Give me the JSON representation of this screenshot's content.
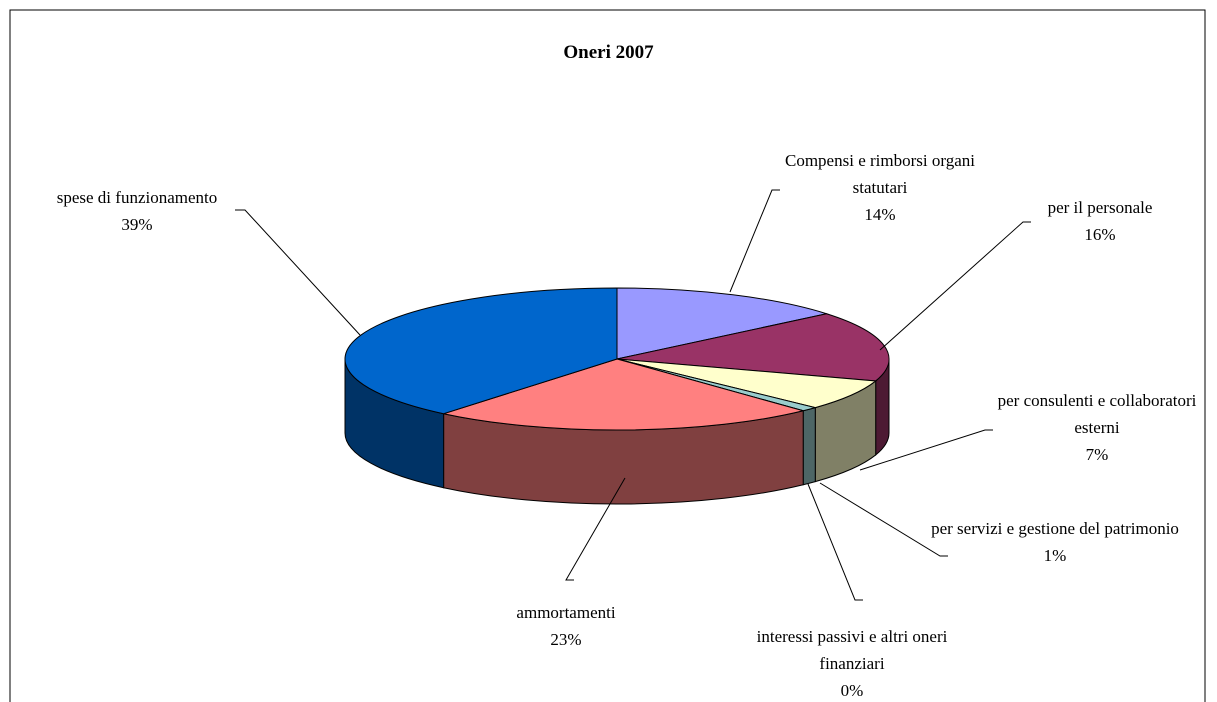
{
  "chart_data": {
    "type": "pie3d",
    "title": "Oneri 2007",
    "categories": [
      "Compensi e rimborsi organi statutari",
      "per il personale",
      "per consulenti e collaboratori esterni",
      "per servizi e gestione del patrimonio",
      "interessi passivi e altri oneri finanziari",
      "ammortamenti",
      "spese di funzionamento"
    ],
    "values": [
      14,
      16,
      7,
      1,
      0,
      23,
      39
    ],
    "value_labels": [
      "14%",
      "16%",
      "7%",
      "1%",
      "0%",
      "23%",
      "39%"
    ],
    "colors": [
      "#9999ff",
      "#993366",
      "#ffffcc",
      "#99cccc",
      "#ccffff",
      "#ff8080",
      "#0066cc"
    ]
  }
}
